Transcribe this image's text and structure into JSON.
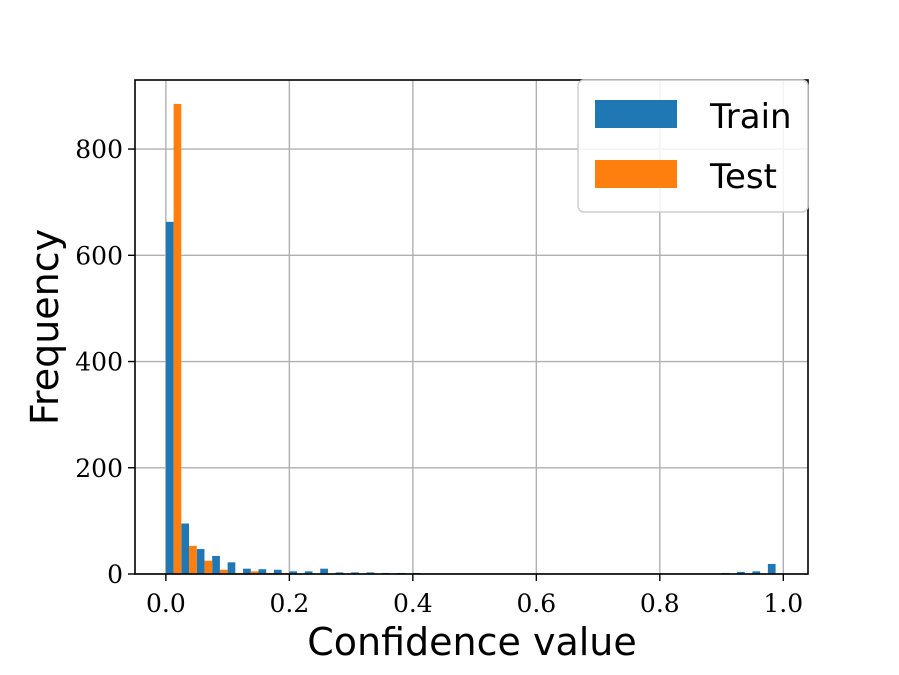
{
  "chart_data": {
    "type": "bar",
    "title": "",
    "xlabel": "Confidence value",
    "ylabel": "Frequency",
    "xlim": [
      -0.05,
      1.04
    ],
    "ylim": [
      0,
      930
    ],
    "xticks": [
      "0.0",
      "0.2",
      "0.4",
      "0.6",
      "0.8",
      "1.0"
    ],
    "xtick_values": [
      0.0,
      0.2,
      0.4,
      0.6,
      0.8,
      1.0
    ],
    "yticks": [
      "0",
      "200",
      "400",
      "600",
      "800"
    ],
    "ytick_values": [
      0,
      200,
      400,
      600,
      800
    ],
    "grid": true,
    "legend_position": "top-right",
    "bin_width": 0.025,
    "bin_start": 0.0,
    "series": [
      {
        "name": "Train",
        "color": "#1f77b4",
        "values": [
          663,
          95,
          47,
          34,
          22,
          10,
          9,
          8,
          5,
          5,
          10,
          3,
          3,
          3,
          2,
          2,
          2,
          1,
          1,
          1,
          1,
          1,
          1,
          1,
          1,
          1,
          1,
          1,
          1,
          1,
          1,
          1,
          1,
          1,
          1,
          1,
          2,
          4,
          5,
          19
        ]
      },
      {
        "name": "Test",
        "color": "#ff7f0e",
        "values": [
          885,
          53,
          25,
          8,
          2,
          5,
          2,
          2,
          1,
          1,
          1,
          1,
          1,
          1,
          1,
          1,
          1,
          1,
          1,
          1,
          1,
          1,
          1,
          1,
          1,
          1,
          1,
          1,
          1,
          1,
          1,
          1,
          1,
          1,
          1,
          1,
          1,
          1,
          1,
          1
        ]
      }
    ]
  }
}
